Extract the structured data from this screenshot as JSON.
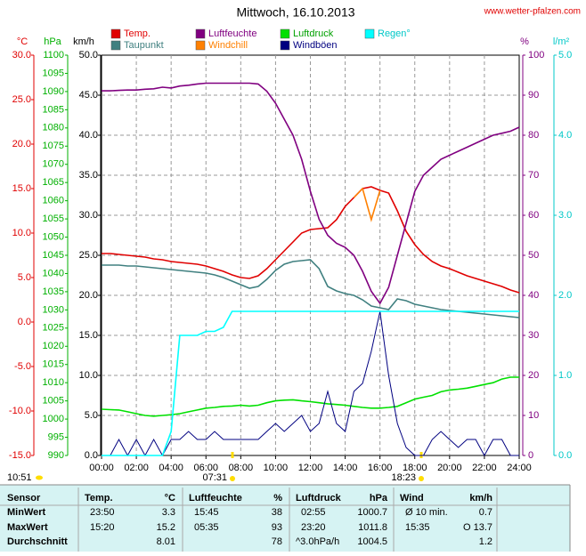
{
  "chart_data": {
    "type": "line",
    "title": "Mittwoch, 16.10.2013",
    "site": "www.wetter-pfalzen.com",
    "xlim": [
      0,
      24
    ],
    "xticks": [
      {
        "value": 0,
        "label": "00:00"
      },
      {
        "value": 2,
        "label": "02:00"
      },
      {
        "value": 4,
        "label": "04:00"
      },
      {
        "value": 6,
        "label": "06:00"
      },
      {
        "value": 8,
        "label": "08:00"
      },
      {
        "value": 10,
        "label": "10:00"
      },
      {
        "value": 12,
        "label": "12:00"
      },
      {
        "value": 14,
        "label": "14:00"
      },
      {
        "value": 16,
        "label": "16:00"
      },
      {
        "value": 18,
        "label": "18:00"
      },
      {
        "value": 20,
        "label": "20:00"
      },
      {
        "value": 22,
        "label": "22:00"
      },
      {
        "value": 24,
        "label": "24:00"
      }
    ],
    "grid": true,
    "axes": {
      "temp": {
        "unit": "°C",
        "color": "#e00000",
        "lim": [
          -15,
          30
        ],
        "ticks": [
          {
            "value": 30,
            "label": "30.0"
          },
          {
            "value": 25,
            "label": "25.0"
          },
          {
            "value": 20,
            "label": "20.0"
          },
          {
            "value": 15,
            "label": "15.0"
          },
          {
            "value": 10,
            "label": "10.0"
          },
          {
            "value": 5,
            "label": "5.0"
          },
          {
            "value": 0,
            "label": "0.0"
          },
          {
            "value": -5,
            "label": "-5.0"
          },
          {
            "value": -10,
            "label": "-10.0"
          },
          {
            "value": -15,
            "label": "-15.0"
          }
        ]
      },
      "hpa": {
        "unit": "hPa",
        "color": "#00b000",
        "lim": [
          990,
          1100
        ],
        "ticks": [
          1100,
          1095,
          1090,
          1085,
          1080,
          1075,
          1070,
          1065,
          1060,
          1055,
          1050,
          1045,
          1040,
          1035,
          1030,
          1025,
          1020,
          1015,
          1010,
          1005,
          1000,
          995,
          990
        ]
      },
      "kmh": {
        "unit": "km/h",
        "color": "#000000",
        "lim": [
          0,
          50
        ],
        "ticks": [
          {
            "value": 50,
            "label": "50.0"
          },
          {
            "value": 45,
            "label": "45.0"
          },
          {
            "value": 40,
            "label": "40.0"
          },
          {
            "value": 35,
            "label": "35.0"
          },
          {
            "value": 30,
            "label": "30.0"
          },
          {
            "value": 25,
            "label": "25.0"
          },
          {
            "value": 20,
            "label": "20.0"
          },
          {
            "value": 15,
            "label": "15.0"
          },
          {
            "value": 10,
            "label": "10.0"
          },
          {
            "value": 5,
            "label": "5.0"
          },
          {
            "value": 0,
            "label": "0.0"
          }
        ]
      },
      "pct": {
        "unit": "%",
        "color": "#800080",
        "lim": [
          0,
          100
        ],
        "ticks": [
          100,
          90,
          80,
          70,
          60,
          50,
          40,
          30,
          20,
          10,
          0
        ]
      },
      "rain": {
        "unit": "l/m²",
        "color": "#00c8c8",
        "lim": [
          0,
          5
        ],
        "ticks": [
          {
            "value": 5,
            "label": "5.0"
          },
          {
            "value": 4,
            "label": "4.0"
          },
          {
            "value": 3,
            "label": "3.0"
          },
          {
            "value": 2,
            "label": "2.0"
          },
          {
            "value": 1,
            "label": "1.0"
          },
          {
            "value": 0,
            "label": "0.0"
          }
        ]
      }
    },
    "x": [
      0,
      0.5,
      1,
      1.5,
      2,
      2.5,
      3,
      3.5,
      4,
      4.5,
      5,
      5.5,
      6,
      6.5,
      7,
      7.5,
      8,
      8.5,
      9,
      9.5,
      10,
      10.5,
      11,
      11.5,
      12,
      12.5,
      13,
      13.5,
      14,
      14.5,
      15,
      15.5,
      16,
      16.5,
      17,
      17.5,
      18,
      18.5,
      19,
      19.5,
      20,
      20.5,
      21,
      21.5,
      22,
      22.5,
      23,
      23.5,
      24
    ],
    "series": [
      {
        "name": "Temp.",
        "color": "#e00000",
        "axis": "temp",
        "values": [
          7.7,
          7.7,
          7.6,
          7.5,
          7.4,
          7.3,
          7.1,
          7.0,
          6.8,
          6.7,
          6.6,
          6.5,
          6.3,
          6.0,
          5.7,
          5.3,
          5.0,
          4.9,
          5.2,
          6.0,
          7.0,
          8.0,
          9.0,
          10.0,
          10.4,
          10.5,
          10.6,
          11.5,
          13.0,
          14.0,
          15.0,
          15.2,
          14.8,
          14.5,
          12.5,
          10.2,
          8.7,
          7.6,
          6.8,
          6.3,
          6.0,
          5.6,
          5.2,
          4.9,
          4.6,
          4.3,
          4.0,
          3.6,
          3.3
        ]
      },
      {
        "name": "Taupunkt",
        "color": "#408080",
        "axis": "temp",
        "values": [
          6.4,
          6.4,
          6.4,
          6.3,
          6.3,
          6.2,
          6.1,
          6.0,
          5.9,
          5.8,
          5.7,
          5.6,
          5.5,
          5.3,
          5.0,
          4.6,
          4.2,
          3.8,
          4.0,
          4.8,
          5.8,
          6.5,
          6.8,
          6.9,
          7.0,
          6.0,
          4.0,
          3.5,
          3.2,
          3.0,
          2.5,
          1.8,
          1.6,
          1.4,
          2.6,
          2.4,
          2.0,
          1.8,
          1.6,
          1.4,
          1.3,
          1.2,
          1.1,
          1.0,
          0.9,
          0.8,
          0.7,
          0.6,
          0.5
        ]
      },
      {
        "name": "Luftfeuchte",
        "color": "#800080",
        "axis": "pct",
        "values": [
          91.1,
          91.1,
          91.2,
          91.3,
          91.3,
          91.5,
          91.6,
          92,
          91.8,
          92.3,
          92.5,
          92.8,
          93,
          93,
          93,
          93,
          93,
          93,
          92.8,
          91,
          88,
          84,
          80,
          74,
          66,
          59,
          55,
          53,
          52,
          50,
          46,
          41,
          38,
          42,
          50,
          58,
          66,
          70,
          72,
          74,
          75,
          76,
          77,
          78,
          79,
          80,
          80.5,
          81,
          82
        ]
      },
      {
        "name": "Windchill",
        "color": "#ff8000",
        "axis": "temp",
        "values": [
          null,
          null,
          null,
          null,
          null,
          null,
          null,
          null,
          null,
          null,
          null,
          null,
          null,
          null,
          null,
          null,
          null,
          null,
          null,
          null,
          null,
          null,
          null,
          null,
          null,
          null,
          null,
          null,
          null,
          14.0,
          15.0,
          11.5,
          14.8,
          null,
          null,
          null,
          null,
          null,
          null,
          null,
          null,
          null,
          null,
          null,
          null,
          null,
          null,
          null,
          null
        ]
      },
      {
        "name": "Luftdruck",
        "color": "#00e000",
        "axis": "hpa",
        "values": [
          1002.7,
          1002.6,
          1002.5,
          1002,
          1001.5,
          1001,
          1000.8,
          1001,
          1001.2,
          1001.5,
          1002,
          1002.5,
          1003,
          1003.2,
          1003.5,
          1003.6,
          1003.8,
          1003.6,
          1003.8,
          1004.5,
          1005,
          1005.2,
          1005.3,
          1005,
          1004.8,
          1004.5,
          1004.2,
          1004,
          1003.8,
          1003.5,
          1003.2,
          1003,
          1003,
          1003.2,
          1003.5,
          1004.5,
          1005.5,
          1006,
          1006.5,
          1007.5,
          1008,
          1008.2,
          1008.5,
          1009,
          1009.5,
          1010,
          1011,
          1011.5,
          1011.5
        ]
      },
      {
        "name": "Windböen",
        "color": "#000080",
        "axis": "kmh",
        "values": [
          0,
          0,
          2,
          0,
          2,
          0,
          2,
          0,
          2,
          2,
          3,
          2,
          2,
          3,
          2,
          2,
          2,
          2,
          2,
          3,
          4,
          3,
          4,
          5,
          3,
          4,
          8,
          4,
          3,
          8,
          9,
          13,
          18,
          10,
          4,
          1,
          0,
          0,
          2,
          3,
          2,
          1,
          2,
          2,
          0,
          2,
          2,
          0,
          0
        ]
      },
      {
        "name": "Regen°",
        "color": "#00ffff",
        "axis": "rain",
        "values": [
          0,
          0,
          0,
          0,
          0,
          0,
          0,
          0,
          0.3,
          1.5,
          1.5,
          1.5,
          1.55,
          1.55,
          1.6,
          1.8,
          1.8,
          1.8,
          1.8,
          1.8,
          1.8,
          1.8,
          1.8,
          1.8,
          1.8,
          1.8,
          1.8,
          1.8,
          1.8,
          1.8,
          1.8,
          1.8,
          1.8,
          1.8,
          1.8,
          1.8,
          1.8,
          1.8,
          1.8,
          1.8,
          1.8,
          1.8,
          1.8,
          1.8,
          1.8,
          1.8,
          1.8,
          1.8,
          1.8
        ]
      }
    ],
    "sun": {
      "daylength": "10:51",
      "sunrise": "07:31",
      "sunset": "18:23"
    }
  },
  "table": {
    "header": [
      "Sensor",
      "Temp.",
      "°C",
      "Luftfeuchte",
      "%",
      "Luftdruck",
      "hPa",
      "Wind",
      "km/h"
    ],
    "rows": [
      [
        "MinWert",
        "23:50",
        "3.3",
        "15:45",
        "38",
        "02:55",
        "1000.7",
        "Ø 10 min.",
        "0.7"
      ],
      [
        "MaxWert",
        "15:20",
        "15.2",
        "05:35",
        "93",
        "23:20",
        "1011.8",
        "15:35",
        "O 13.7"
      ],
      [
        "Durchschnitt",
        null,
        "8.01",
        null,
        "78",
        "^3.0hPa/h",
        "1004.5",
        null,
        "1.2"
      ]
    ]
  }
}
